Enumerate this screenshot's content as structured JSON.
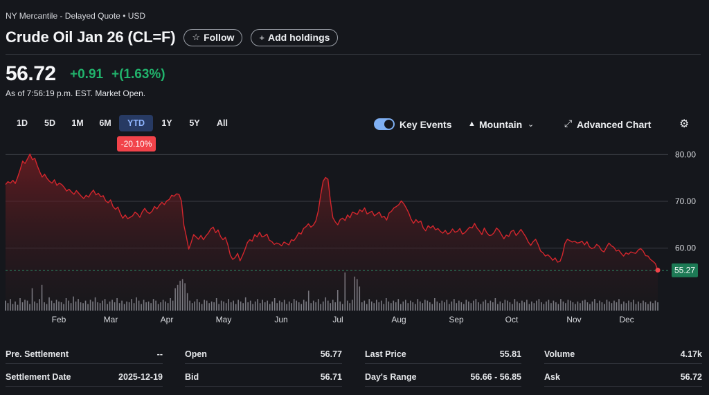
{
  "header": {
    "exchange": "NY Mercantile - Delayed Quote • USD",
    "title": "Crude Oil Jan 26 (CL=F)",
    "follow_label": "Follow",
    "follow_icon": "star-outline-icon",
    "holdings_label": "Add holdings",
    "holdings_icon": "plus-icon"
  },
  "quote": {
    "price": "56.72",
    "change": "+0.91",
    "change_pct": "+(1.63%)",
    "as_of": "As of 7:56:19 p.m. EST. Market Open.",
    "up_color": "#21b36c",
    "down_color": "#f2434a"
  },
  "ranges": [
    "1D",
    "5D",
    "1M",
    "6M",
    "YTD",
    "1Y",
    "5Y",
    "All"
  ],
  "active_range": "YTD",
  "ytd_change": "-20.10%",
  "toolbar": {
    "key_events_label": "Key Events",
    "key_events_on": true,
    "chart_type_label": "Mountain",
    "advanced_label": "Advanced Chart",
    "settings_icon": "gear-icon"
  },
  "chart_data": {
    "type": "area",
    "y_ticks": [
      "80.00",
      "70.00",
      "60.00"
    ],
    "ylim": [
      50.5,
      80.5
    ],
    "x_labels": [
      "Feb",
      "Mar",
      "Apr",
      "May",
      "Jun",
      "Jul",
      "Aug",
      "Sep",
      "Oct",
      "Nov",
      "Dec"
    ],
    "last_label": "55.27",
    "reference_value": 55.27,
    "line_color": "#d3262d",
    "series": [
      {
        "values": [
          73.6,
          74.2,
          73.9,
          74.5,
          73.8,
          75.2,
          76.8,
          78.6,
          78.1,
          79.1,
          80.1,
          78.9,
          79.2,
          77.6,
          76.3,
          75.2,
          75.8,
          74.9,
          74.3,
          73.9,
          74.6,
          73.4,
          73.9,
          73.6,
          73.0,
          72.2,
          72.6,
          72.0,
          71.5,
          72.3,
          71.7,
          71.1,
          70.6,
          71.3,
          70.9,
          71.8,
          72.4,
          71.4,
          71.7,
          71.0,
          71.2,
          70.1,
          69.7,
          70.3,
          68.9,
          68.3,
          68.8,
          67.4,
          66.4,
          67.1,
          66.3,
          66.6,
          66.9,
          67.7,
          67.3,
          66.6,
          67.8,
          68.5,
          67.7,
          67.4,
          67.9,
          68.9,
          68.4,
          69.2,
          69.8,
          69.3,
          70.1,
          70.4,
          71.3,
          71.1,
          71.6,
          71.5,
          70.1,
          64.9,
          62.5,
          59.8,
          61.2,
          62.9,
          62.4,
          61.9,
          62.7,
          61.8,
          62.6,
          63.2,
          64.1,
          64.5,
          63.3,
          63.9,
          62.5,
          61.8,
          62.3,
          60.7,
          58.5,
          57.6,
          58.0,
          58.9,
          57.3,
          58.4,
          59.7,
          61.2,
          61.8,
          61.5,
          62.9,
          62.4,
          63.4,
          62.4,
          62.6,
          63.0,
          61.7,
          61.4,
          60.8,
          61.1,
          60.9,
          60.5,
          61.3,
          61.0,
          60.7,
          61.8,
          61.6,
          62.3,
          63.3,
          63.0,
          64.2,
          64.6,
          65.2,
          64.5,
          64.9,
          65.8,
          67.9,
          71.3,
          74.3,
          75.1,
          74.7,
          70.1,
          66.5,
          65.6,
          65.0,
          66.1,
          66.4,
          65.9,
          67.1,
          66.5,
          67.7,
          67.5,
          67.2,
          68.2,
          67.8,
          68.6,
          67.3,
          67.6,
          67.9,
          66.9,
          67.3,
          67.7,
          66.6,
          66.8,
          66.0,
          67.5,
          67.9,
          68.6,
          68.9,
          69.3,
          70.1,
          69.5,
          68.6,
          67.6,
          66.2,
          65.3,
          66.1,
          65.5,
          65.8,
          64.3,
          63.7,
          64.8,
          64.3,
          64.8,
          63.9,
          64.2,
          63.6,
          63.2,
          63.8,
          63.0,
          63.3,
          64.1,
          63.4,
          63.6,
          64.2,
          63.0,
          63.3,
          63.9,
          64.5,
          64.3,
          65.3,
          64.3,
          63.7,
          62.9,
          64.3,
          63.3,
          62.7,
          62.8,
          63.3,
          64.3,
          63.8,
          62.9,
          62.0,
          62.8,
          62.5,
          63.6,
          63.8,
          62.7,
          63.3,
          64.0,
          63.2,
          62.4,
          61.3,
          60.6,
          61.4,
          61.9,
          60.8,
          59.4,
          59.0,
          58.3,
          58.6,
          58.1,
          57.4,
          57.9,
          57.0,
          57.2,
          58.6,
          61.0,
          61.9,
          61.6,
          61.3,
          61.5,
          61.1,
          61.2,
          61.5,
          60.7,
          61.4,
          60.3,
          59.9,
          60.1,
          60.8,
          60.4,
          59.5,
          59.2,
          60.2,
          61.1,
          60.5,
          60.2,
          59.4,
          59.6,
          58.9,
          58.3,
          59.0,
          58.7,
          59.2,
          59.0,
          58.9,
          59.6,
          59.9,
          59.4,
          58.4,
          58.3,
          57.6,
          57.2,
          56.7,
          55.3
        ]
      }
    ],
    "volume": [
      12,
      9,
      14,
      8,
      11,
      7,
      15,
      10,
      13,
      12,
      8,
      27,
      11,
      9,
      14,
      31,
      10,
      8,
      16,
      12,
      9,
      13,
      11,
      10,
      8,
      15,
      12,
      9,
      17,
      11,
      14,
      10,
      9,
      12,
      8,
      13,
      11,
      16,
      10,
      9,
      12,
      14,
      8,
      11,
      13,
      10,
      15,
      9,
      12,
      8,
      11,
      10,
      14,
      9,
      16,
      12,
      8,
      13,
      10,
      11,
      9,
      14,
      12,
      8,
      10,
      13,
      11,
      9,
      15,
      12,
      27,
      31,
      36,
      38,
      33,
      21,
      12,
      9,
      11,
      14,
      10,
      8,
      13,
      12,
      9,
      11,
      10,
      15,
      8,
      12,
      11,
      9,
      14,
      10,
      12,
      8,
      13,
      11,
      9,
      16,
      10,
      12,
      8,
      11,
      14,
      9,
      13,
      10,
      12,
      8,
      11,
      15,
      9,
      12,
      10,
      13,
      8,
      11,
      9,
      14,
      12,
      10,
      8,
      13,
      11,
      24,
      9,
      12,
      10,
      14,
      8,
      11,
      16,
      12,
      9,
      13,
      10,
      25,
      11,
      8,
      46,
      12,
      9,
      13,
      41,
      38,
      29,
      10,
      12,
      8,
      14,
      11,
      9,
      13,
      10,
      12,
      8,
      15,
      11,
      9,
      12,
      10,
      14,
      8,
      11,
      13,
      9,
      12,
      10,
      8,
      14,
      11,
      9,
      13,
      12,
      10,
      8,
      15,
      11,
      9,
      12,
      10,
      13,
      8,
      11,
      14,
      9,
      12,
      10,
      8,
      13,
      11,
      9,
      12,
      14,
      10,
      8,
      11,
      13,
      9,
      12,
      10,
      15,
      8,
      11,
      9,
      13,
      12,
      10,
      8,
      14,
      11,
      9,
      12,
      10,
      13,
      8,
      11,
      9,
      12,
      14,
      10,
      8,
      11,
      13,
      9,
      12,
      10,
      8,
      14,
      11,
      9,
      13,
      12,
      10,
      8,
      11,
      9,
      12,
      13,
      10,
      8,
      11,
      14,
      9,
      12,
      10,
      8,
      13,
      11,
      9,
      12,
      10,
      14,
      8,
      11,
      9,
      12,
      10,
      13,
      8,
      11,
      9,
      12,
      10,
      8,
      11,
      9,
      12,
      10
    ]
  },
  "stats": [
    {
      "label": "Pre. Settlement",
      "value": "--"
    },
    {
      "label": "Settlement Date",
      "value": "2025-12-19"
    },
    {
      "label": "Open",
      "value": "56.77"
    },
    {
      "label": "Bid",
      "value": "56.71"
    },
    {
      "label": "Last Price",
      "value": "55.81"
    },
    {
      "label": "Day's Range",
      "value": "56.66 - 56.85"
    },
    {
      "label": "Volume",
      "value": "4.17k"
    },
    {
      "label": "Ask",
      "value": "56.72"
    }
  ]
}
